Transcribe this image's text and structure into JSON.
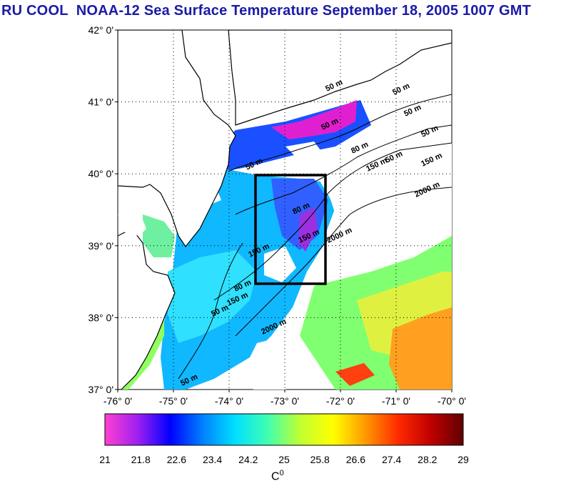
{
  "title": "RU COOL  NOAA-12 Sea Surface Temperature September 18, 2005 1007 GMT",
  "map": {
    "lat_labels": [
      "42° 0'",
      "41° 0'",
      "40° 0'",
      "39° 0'",
      "38° 0'",
      "37° 0'"
    ],
    "lon_labels": [
      "-76° 0'",
      "-75° 0'",
      "-74° 0'",
      "-73° 0'",
      "-72° 0'",
      "-71° 0'",
      "-70° 0'"
    ],
    "contour_labels": [
      "50 m",
      "50 m",
      "50 m",
      "50 m",
      "50 m",
      "50 m",
      "50 m",
      "50 m",
      "50 m",
      "80 m",
      "80 m",
      "80 m",
      "150 m",
      "150 m",
      "150 m",
      "150 m",
      "150 m",
      "2000 m",
      "2000 m",
      "2000 m"
    ],
    "study_box_color": "#000000",
    "land_color": "#ffffff"
  },
  "colorbar": {
    "tick_labels": [
      "21",
      "21.8",
      "22.6",
      "23.4",
      "24.2",
      "25",
      "25.8",
      "26.6",
      "27.4",
      "28.2",
      "29"
    ],
    "unit_label": "C",
    "unit_superscript": "0",
    "colors": [
      "#ff40d0",
      "#a020f0",
      "#0000ff",
      "#0080ff",
      "#00e0ff",
      "#40ffb0",
      "#c0ff30",
      "#ffff00",
      "#ff9900",
      "#ff2a00",
      "#c00000",
      "#600000"
    ]
  }
}
